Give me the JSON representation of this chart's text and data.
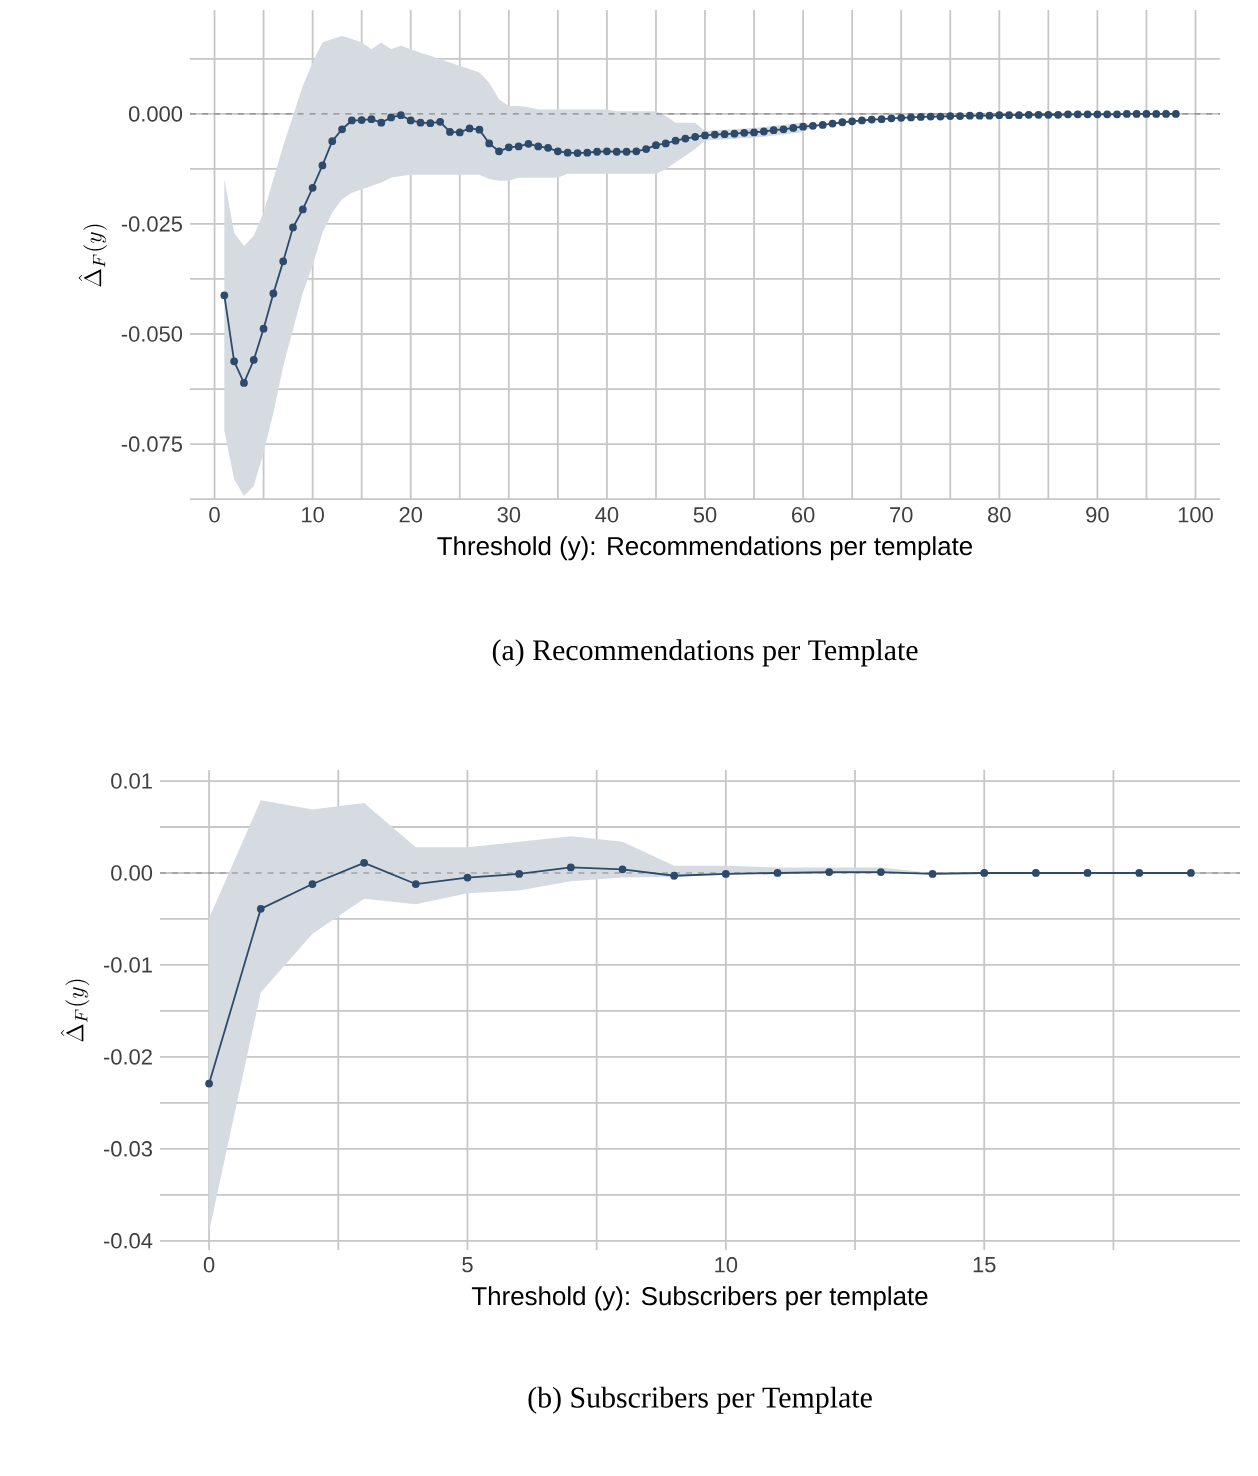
{
  "chart_data": [
    {
      "type": "line",
      "xlabel": "Threshold (y): Recommendations per template",
      "ylabel": "\\hat{\\Delta}_F(y)",
      "annotations": [
        "(a) Recommendations per Template"
      ],
      "xlim": [
        -2.5,
        102.5
      ],
      "ylim": [
        -0.0877,
        0.0236
      ],
      "xticks": [
        0,
        {
          "value": 5,
          "label": null
        },
        10,
        {
          "value": 15,
          "label": null
        },
        20,
        {
          "value": 25,
          "label": null
        },
        30,
        {
          "value": 35,
          "label": null
        },
        40,
        {
          "value": 45,
          "label": null
        },
        50,
        {
          "value": 55,
          "label": null
        },
        60,
        {
          "value": 65,
          "label": null
        },
        70,
        {
          "value": 75,
          "label": null
        },
        80,
        {
          "value": 85,
          "label": null
        },
        90,
        {
          "value": 95,
          "label": null
        },
        100
      ],
      "yticks": [
        {
          "value": -0.0875,
          "label": null
        },
        {
          "value": -0.075,
          "label": "-0.075"
        },
        {
          "value": -0.0625,
          "label": null
        },
        {
          "value": -0.05,
          "label": "-0.050"
        },
        {
          "value": -0.0375,
          "label": null
        },
        -0.025,
        {
          "value": -0.0125,
          "label": null
        },
        {
          "value": 0,
          "label": "0.000"
        },
        {
          "value": 0.0125,
          "label": null
        }
      ],
      "grid": true,
      "marker": "circle",
      "line_style": "solid",
      "ref_lines": [
        {
          "axis": "y",
          "value": 0,
          "color": "#888888",
          "line_style": "dashed"
        }
      ],
      "series": [
        {
          "color": "#2e4a6b",
          "x": [
            1,
            2,
            3,
            4,
            5,
            6,
            7,
            8,
            9,
            10,
            11,
            12,
            13,
            14,
            15,
            16,
            17,
            18,
            19,
            20,
            21,
            22,
            23,
            24,
            25,
            26,
            27,
            28,
            29,
            30,
            31,
            32,
            33,
            34,
            35,
            36,
            37,
            38,
            39,
            40,
            41,
            42,
            43,
            44,
            45,
            46,
            47,
            48,
            49,
            50,
            51,
            52,
            53,
            54,
            55,
            56,
            57,
            58,
            59,
            60,
            61,
            62,
            63,
            64,
            65,
            66,
            67,
            68,
            69,
            70,
            71,
            72,
            73,
            74,
            75,
            76,
            77,
            78,
            79,
            80,
            81,
            82,
            83,
            84,
            85,
            86,
            87,
            88,
            89,
            90,
            91,
            92,
            93,
            94,
            95,
            96,
            97,
            98
          ],
          "values": [
            -0.0412,
            -0.0562,
            -0.0611,
            -0.0559,
            -0.0488,
            -0.0408,
            -0.0335,
            -0.0258,
            -0.0217,
            -0.0168,
            -0.0117,
            -0.0062,
            -0.0035,
            -0.0015,
            -0.0014,
            -0.0012,
            -0.002,
            -0.0008,
            -0.0003,
            -0.0015,
            -0.002,
            -0.0021,
            -0.0018,
            -0.0041,
            -0.0042,
            -0.0033,
            -0.0036,
            -0.0067,
            -0.0085,
            -0.0076,
            -0.0074,
            -0.0068,
            -0.0074,
            -0.0077,
            -0.0085,
            -0.0088,
            -0.0089,
            -0.0088,
            -0.0086,
            -0.0085,
            -0.0086,
            -0.0086,
            -0.0085,
            -0.008,
            -0.0071,
            -0.0067,
            -0.0061,
            -0.0056,
            -0.0052,
            -0.0049,
            -0.0047,
            -0.0046,
            -0.0045,
            -0.0043,
            -0.0042,
            -0.004,
            -0.0037,
            -0.0035,
            -0.0032,
            -0.0029,
            -0.0027,
            -0.0025,
            -0.0022,
            -0.0019,
            -0.0017,
            -0.0015,
            -0.0013,
            -0.0012,
            -0.001,
            -0.0009,
            -0.0008,
            -0.0007,
            -0.0006,
            -0.0006,
            -0.0005,
            -0.0005,
            -0.0004,
            -0.0004,
            -0.0004,
            -0.0003,
            -0.0003,
            -0.0003,
            -0.0002,
            -0.0002,
            -0.0002,
            -0.0002,
            -0.0001,
            -0.0001,
            -0.0001,
            -0.0001,
            -0.0001,
            -0.0001,
            0,
            0,
            0,
            0,
            0,
            0
          ],
          "upper": [
            -0.0148,
            -0.027,
            -0.03,
            -0.0277,
            -0.0224,
            -0.0148,
            -0.0073,
            -0.0005,
            0.0064,
            0.0117,
            0.0162,
            0.017,
            0.0177,
            0.017,
            0.0162,
            0.0147,
            0.0162,
            0.0147,
            0.0155,
            0.0147,
            0.0139,
            0.0132,
            0.0124,
            0.0117,
            0.0109,
            0.0102,
            0.0094,
            0.0071,
            0.0033,
            0.0018,
            0.0018,
            0.0015,
            0.001,
            0.001,
            0.001,
            0.001,
            0.001,
            0.001,
            0.001,
            0.001,
            0.0006,
            0.0006,
            0.0006,
            0.0006,
            0.0006,
            -0.0005,
            -0.002,
            -0.002,
            -0.002,
            -0.0039,
            -0.0037,
            -0.0036,
            -0.0035,
            -0.0033,
            -0.0032,
            -0.003,
            -0.0027,
            -0.0025,
            -0.0022,
            -0.0019,
            -0.0025,
            -0.0023,
            -0.002,
            -0.0017,
            -0.0015,
            -0.0013,
            -0.0011,
            -0.001,
            -0.0008,
            -0.0007,
            -0.0006,
            -0.0005,
            -0.0004,
            -0.0004,
            -0.0003,
            -0.0003,
            -0.0002,
            -0.0002,
            -0.0002,
            -0.0001,
            -0.0001,
            -0.0001,
            0,
            0,
            0,
            0,
            0.0001,
            0.0001,
            0.0001,
            0.0001,
            0.0001,
            0.0001,
            0.0001,
            0.0001,
            0.0001,
            0.0001,
            0.0001,
            0.0001
          ],
          "lower": [
            -0.072,
            -0.083,
            -0.0868,
            -0.0845,
            -0.077,
            -0.0679,
            -0.0573,
            -0.049,
            -0.0406,
            -0.0345,
            -0.027,
            -0.0224,
            -0.0194,
            -0.0179,
            -0.0171,
            -0.0164,
            -0.0156,
            -0.0145,
            -0.0141,
            -0.0138,
            -0.0138,
            -0.0138,
            -0.0138,
            -0.0138,
            -0.0138,
            -0.0138,
            -0.0138,
            -0.0148,
            -0.0152,
            -0.0152,
            -0.0145,
            -0.0145,
            -0.0145,
            -0.0145,
            -0.0145,
            -0.0136,
            -0.0136,
            -0.0136,
            -0.0136,
            -0.0136,
            -0.0136,
            -0.0136,
            -0.0136,
            -0.0136,
            -0.0136,
            -0.0126,
            -0.011,
            -0.0095,
            -0.008,
            -0.0061,
            -0.0059,
            -0.0058,
            -0.0057,
            -0.0055,
            -0.0054,
            -0.0052,
            -0.0049,
            -0.0047,
            -0.0044,
            -0.0041,
            -0.0029,
            -0.0027,
            -0.0024,
            -0.0021,
            -0.0019,
            -0.0017,
            -0.0015,
            -0.0014,
            -0.0012,
            -0.0011,
            -0.001,
            -0.0009,
            -0.0008,
            -0.0008,
            -0.0007,
            -0.0007,
            -0.0006,
            -0.0006,
            -0.0006,
            -0.0005,
            -0.0005,
            -0.0005,
            -0.0004,
            -0.0004,
            -0.0004,
            -0.0004,
            -0.0003,
            -0.0003,
            -0.0003,
            -0.0003,
            -0.0003,
            -0.0003,
            -0.0002,
            -0.0002,
            -0.0002,
            -0.0002,
            -0.0002,
            -0.0002
          ]
        }
      ]
    },
    {
      "type": "line",
      "xlabel": "Threshold (y): Subscribers per template",
      "ylabel": "\\hat{\\Delta}_F(y)",
      "annotations": [
        "(b) Subscribers per Template"
      ],
      "xlim": [
        -0.95,
        19.95
      ],
      "ylim": [
        -0.041,
        0.0112
      ],
      "xticks": [
        0,
        {
          "value": 2.5,
          "label": null
        },
        5,
        {
          "value": 7.5,
          "label": null
        },
        10,
        {
          "value": 12.5,
          "label": null
        },
        15,
        {
          "value": 17.5,
          "label": null
        }
      ],
      "yticks": [
        {
          "value": -0.04,
          "label": "-0.04"
        },
        {
          "value": -0.035,
          "label": null
        },
        {
          "value": -0.03,
          "label": "-0.03"
        },
        {
          "value": -0.025,
          "label": null
        },
        {
          "value": -0.02,
          "label": "-0.02"
        },
        {
          "value": -0.015,
          "label": null
        },
        {
          "value": -0.01,
          "label": "-0.01"
        },
        {
          "value": -0.005,
          "label": null
        },
        {
          "value": 0,
          "label": "0.00"
        },
        {
          "value": 0.005,
          "label": null
        },
        0.01
      ],
      "grid": true,
      "marker": "circle",
      "line_style": "solid",
      "ref_lines": [
        {
          "axis": "y",
          "value": 0,
          "color": "#888888",
          "line_style": "dashed"
        }
      ],
      "series": [
        {
          "color": "#2e4a6b",
          "x": [
            0,
            1,
            2,
            3,
            4,
            5,
            6,
            7,
            8,
            9,
            10,
            11,
            12,
            13,
            14,
            15,
            16,
            17,
            18,
            19
          ],
          "values": [
            -0.0229,
            -0.0039,
            -0.0012,
            0.0011,
            -0.0012,
            -0.0005,
            -0.0001,
            0.0006,
            0.0004,
            -0.0003,
            -0.0001,
            0,
            0.0001,
            0.0001,
            -0.0001,
            0,
            0,
            0,
            0,
            0
          ],
          "upper": [
            -0.0049,
            0.0079,
            0.0069,
            0.0076,
            0.0028,
            0.0028,
            0.0034,
            0.004,
            0.0034,
            0.0008,
            0.0008,
            0.0006,
            0.0006,
            0.0006,
            0,
            0,
            0,
            0,
            0,
            0
          ],
          "lower": [
            -0.039,
            -0.013,
            -0.0066,
            -0.0028,
            -0.0034,
            -0.0022,
            -0.0019,
            -0.0009,
            -0.0005,
            -0.0004,
            -0.0002,
            -0.0001,
            -0.0001,
            -0.0001,
            -0.0001,
            0,
            0,
            0,
            0,
            0
          ]
        }
      ]
    }
  ]
}
